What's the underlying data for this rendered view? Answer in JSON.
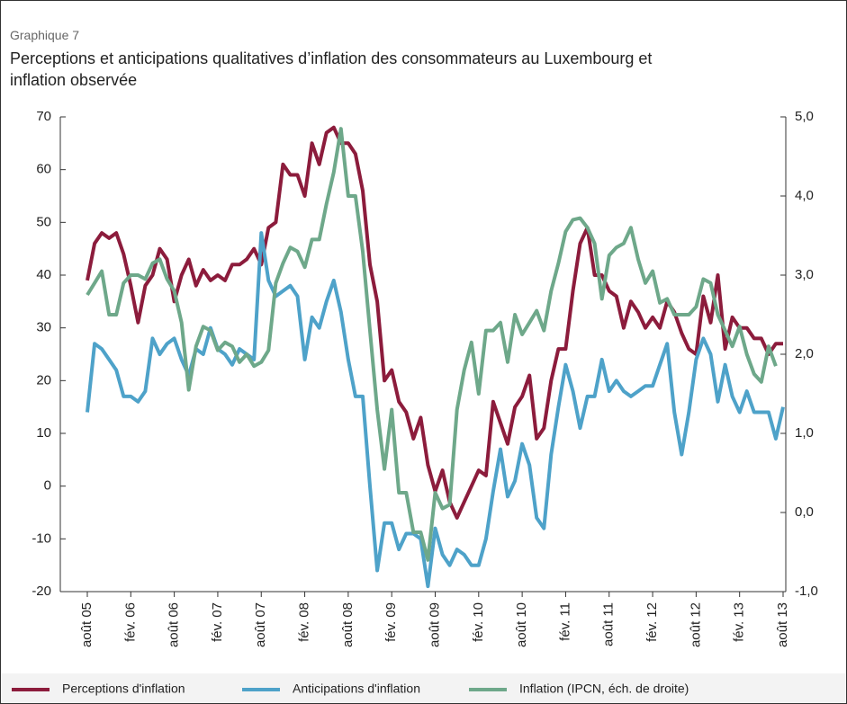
{
  "chart_data": {
    "type": "line",
    "label": "Graphique 7",
    "title": "Perceptions et anticipations qualitatives d’inflation des consommateurs au Luxembourg et inflation observée",
    "categories": [
      "août 05",
      null,
      null,
      null,
      null,
      null,
      "fév. 06",
      null,
      null,
      null,
      null,
      null,
      "août 06",
      null,
      null,
      null,
      null,
      null,
      "fév. 07",
      null,
      null,
      null,
      null,
      null,
      "août 07",
      null,
      null,
      null,
      null,
      null,
      "fév. 08",
      null,
      null,
      null,
      null,
      null,
      "août 08",
      null,
      null,
      null,
      null,
      null,
      "fév. 09",
      null,
      null,
      null,
      null,
      null,
      "août 09",
      null,
      null,
      null,
      null,
      null,
      "fév. 10",
      null,
      null,
      null,
      null,
      null,
      "août 10",
      null,
      null,
      null,
      null,
      null,
      "fév. 11",
      null,
      null,
      null,
      null,
      null,
      "août 11",
      null,
      null,
      null,
      null,
      null,
      "fév. 12",
      null,
      null,
      null,
      null,
      null,
      "août 12",
      null,
      null,
      null,
      null,
      null,
      "fév. 13",
      null,
      null,
      null,
      null,
      null,
      "août 13"
    ],
    "series": [
      {
        "name": "Perceptions d'inflation",
        "color": "#8c1c3c",
        "values": [
          39,
          46,
          48,
          47,
          48,
          44,
          38,
          31,
          38,
          40,
          45,
          43,
          35,
          40,
          43,
          38,
          41,
          39,
          40,
          39,
          42,
          42,
          43,
          45,
          42,
          49,
          50,
          61,
          59,
          59,
          55,
          65,
          61,
          67,
          68,
          65,
          65,
          63,
          56,
          42,
          35,
          20,
          22,
          16,
          14,
          9,
          13,
          4,
          -1,
          3,
          -3,
          -6,
          -3,
          0,
          3,
          2,
          16,
          12,
          8,
          15,
          17,
          21,
          9,
          11,
          20,
          26,
          26,
          37,
          46,
          49,
          40,
          40,
          37,
          36,
          30,
          35,
          33,
          30,
          32,
          30,
          35,
          33,
          29,
          26,
          25,
          36,
          31,
          40,
          26,
          32,
          30,
          30,
          28,
          28,
          25,
          27,
          27
        ]
      },
      {
        "name": "Anticipations d'inflation",
        "color": "#4ea2c9",
        "values": [
          14,
          27,
          26,
          24,
          22,
          17,
          17,
          16,
          18,
          28,
          25,
          27,
          28,
          24,
          21,
          26,
          25,
          30,
          26,
          25,
          23,
          26,
          25,
          24,
          48,
          39,
          36,
          37,
          38,
          36,
          24,
          32,
          30,
          35,
          39,
          33,
          24,
          17,
          17,
          0,
          -16,
          -7,
          -7,
          -12,
          -9,
          -9,
          -10,
          -19,
          -8,
          -13,
          -15,
          -12,
          -13,
          -15,
          -15,
          -10,
          -1,
          7,
          -2,
          1,
          8,
          4,
          -6,
          -8,
          6,
          15,
          23,
          18,
          11,
          17,
          17,
          24,
          18,
          20,
          18,
          17,
          18,
          19,
          19,
          23,
          27,
          14,
          6,
          14,
          24,
          28,
          25,
          16,
          23,
          17,
          14,
          18,
          14,
          14,
          14,
          9,
          15
        ]
      },
      {
        "name": "Inflation (IPCN, éch. de droite)",
        "color": "#6ea88a",
        "axis": "y2",
        "values": [
          2.75,
          2.9,
          3.05,
          2.5,
          2.5,
          2.9,
          3.0,
          3.0,
          2.95,
          3.15,
          3.2,
          2.95,
          2.8,
          2.4,
          1.55,
          2.1,
          2.35,
          2.3,
          2.05,
          2.15,
          2.1,
          1.9,
          2.0,
          1.85,
          1.9,
          2.05,
          2.9,
          3.15,
          3.35,
          3.3,
          3.1,
          3.45,
          3.45,
          3.9,
          4.3,
          4.85,
          4.0,
          4.0,
          3.3,
          2.3,
          1.3,
          0.55,
          1.3,
          0.25,
          0.25,
          -0.25,
          -0.25,
          -0.6,
          0.25,
          0.05,
          0.1,
          1.3,
          1.8,
          2.15,
          1.5,
          2.3,
          2.3,
          2.4,
          1.9,
          2.5,
          2.25,
          2.4,
          2.55,
          2.3,
          2.8,
          3.15,
          3.55,
          3.7,
          3.72,
          3.6,
          3.4,
          2.7,
          3.25,
          3.35,
          3.4,
          3.6,
          3.2,
          2.9,
          3.05,
          2.65,
          2.7,
          2.5,
          2.5,
          2.5,
          2.6,
          2.95,
          2.9,
          2.5,
          2.3,
          2.1,
          2.35,
          2.0,
          1.75,
          1.65,
          2.1,
          1.85,
          null
        ]
      }
    ],
    "ylim": [
      -20,
      70
    ],
    "yticks": [
      -20,
      -10,
      0,
      10,
      20,
      30,
      40,
      50,
      60,
      70
    ],
    "y2lim": [
      -1,
      5
    ],
    "y2ticks": [
      {
        "value": -1,
        "label": "-1,0"
      },
      {
        "value": 0,
        "label": "0,0"
      },
      {
        "value": 1,
        "label": "1,0"
      },
      {
        "value": 2,
        "label": "2,0"
      },
      {
        "value": 3,
        "label": "3,0"
      },
      {
        "value": 4,
        "label": "4,0"
      },
      {
        "value": 5,
        "label": "5,0"
      }
    ],
    "grid": false,
    "legend": "bottom"
  }
}
